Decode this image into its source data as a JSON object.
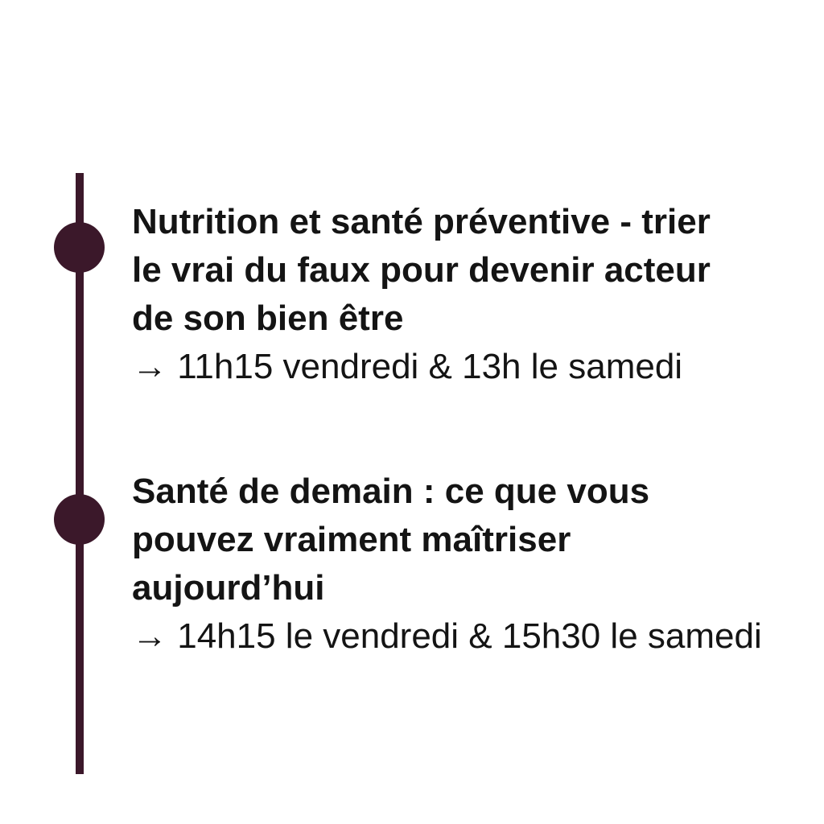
{
  "canvas": {
    "background": "#ffffff",
    "accent_color": "#3b182a",
    "text_color": "#141414"
  },
  "timeline": {
    "events": [
      {
        "title_lines": [
          "Nutrition et santé préventive - trier",
          "le vrai du faux pour devenir acteur",
          "de son bien être"
        ],
        "schedule": "→ 11h15 vendredi & 13h le samedi"
      },
      {
        "title_lines": [
          "Santé de demain : ce que vous",
          "pouvez vraiment maîtriser",
          "aujourd’hui"
        ],
        "schedule": "→ 14h15 le vendredi & 15h30 le samedi"
      }
    ]
  }
}
